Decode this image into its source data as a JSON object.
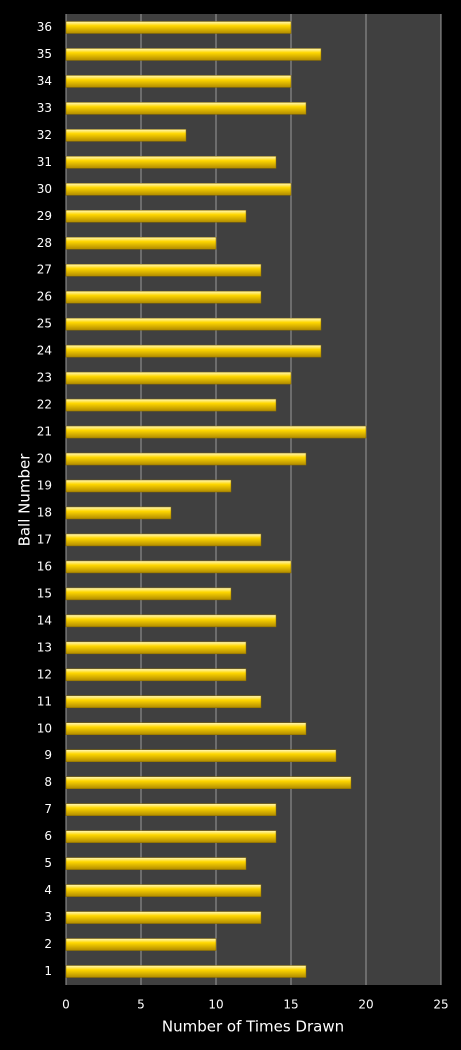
{
  "chart_data": {
    "type": "bar",
    "orientation": "horizontal",
    "x_label": "Number of Times Drawn",
    "y_label": "Ball Number",
    "categories": [
      "1",
      "2",
      "3",
      "4",
      "5",
      "6",
      "7",
      "8",
      "9",
      "10",
      "11",
      "12",
      "13",
      "14",
      "15",
      "16",
      "17",
      "18",
      "19",
      "20",
      "21",
      "22",
      "23",
      "24",
      "25",
      "26",
      "27",
      "28",
      "29",
      "30",
      "31",
      "32",
      "33",
      "34",
      "35",
      "36"
    ],
    "values": [
      16,
      10,
      13,
      13,
      12,
      14,
      14,
      19,
      18,
      16,
      13,
      12,
      12,
      14,
      11,
      15,
      13,
      7,
      11,
      16,
      20,
      14,
      15,
      17,
      17,
      13,
      13,
      10,
      12,
      15,
      14,
      8,
      16,
      15,
      17,
      15
    ],
    "color": "#ffd700",
    "xlim": [
      0,
      25
    ],
    "xticks": [
      0,
      5,
      10,
      15,
      20,
      25
    ],
    "grid": true
  }
}
